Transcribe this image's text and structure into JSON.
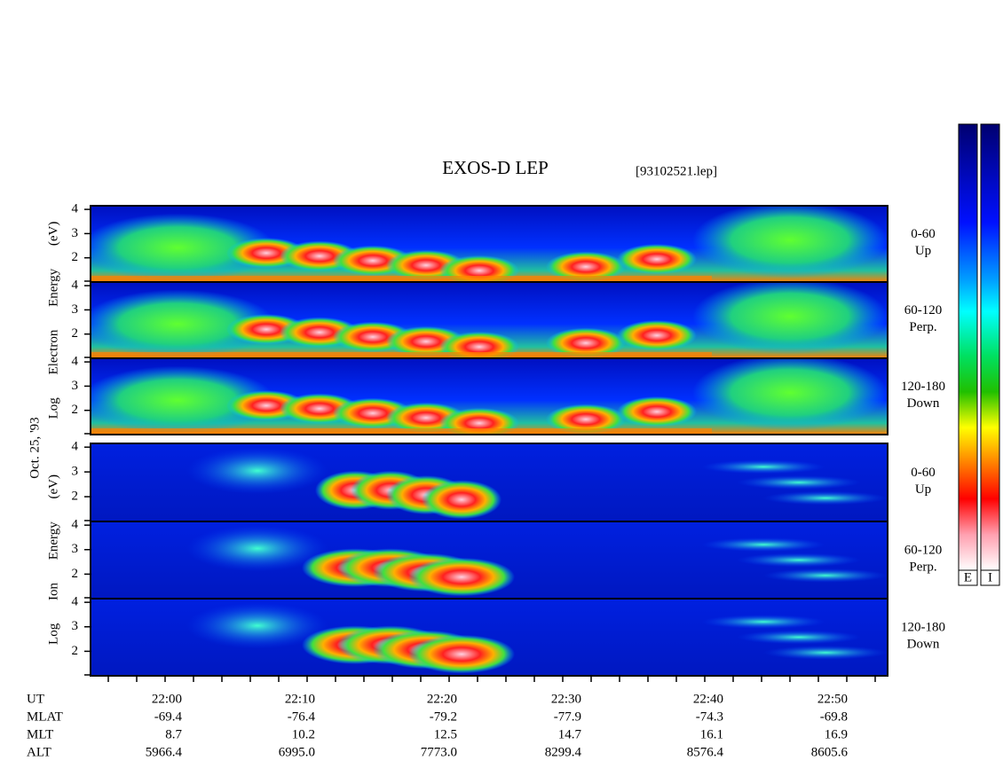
{
  "title": "EXOS-D LEP",
  "file": "[93102521.lep]",
  "date": "Oct. 25, '93",
  "colorbars": [
    "E",
    "I"
  ],
  "ylim": [
    1,
    4.15
  ],
  "groups": [
    {
      "axis_label": "Log Electron Energy (eV)",
      "panels": [
        {
          "channel": "0-60",
          "direction": "Up",
          "yticks": [
            2,
            3,
            4
          ]
        },
        {
          "channel": "60-120",
          "direction": "Perp.",
          "yticks": [
            2,
            3,
            4
          ]
        },
        {
          "channel": "120-180",
          "direction": "Down",
          "yticks": [
            2,
            3,
            4
          ]
        }
      ]
    },
    {
      "axis_label": "Log Ion Energy (eV)",
      "panels": [
        {
          "channel": "0-60",
          "direction": "Up",
          "yticks": [
            2,
            3,
            4
          ]
        },
        {
          "channel": "60-120",
          "direction": "Perp.",
          "yticks": [
            2,
            3,
            4
          ]
        },
        {
          "channel": "120-180",
          "direction": "Down",
          "yticks": [
            2,
            3,
            4
          ]
        }
      ]
    }
  ],
  "x_axis": {
    "rows": [
      {
        "name": "UT",
        "values": [
          "22:00",
          "22:10",
          "22:20",
          "22:30",
          "22:40",
          "22:50"
        ]
      },
      {
        "name": "MLAT",
        "values": [
          "-69.4",
          "-76.4",
          "-79.2",
          "-77.9",
          "-74.3",
          "-69.8"
        ]
      },
      {
        "name": "MLT",
        "values": [
          "8.7",
          "10.2",
          "12.5",
          "14.7",
          "16.1",
          "16.9"
        ]
      },
      {
        "name": "ALT",
        "values": [
          "5966.4",
          "6995.0",
          "7773.0",
          "8299.4",
          "8576.4",
          "8605.6"
        ]
      }
    ]
  }
}
